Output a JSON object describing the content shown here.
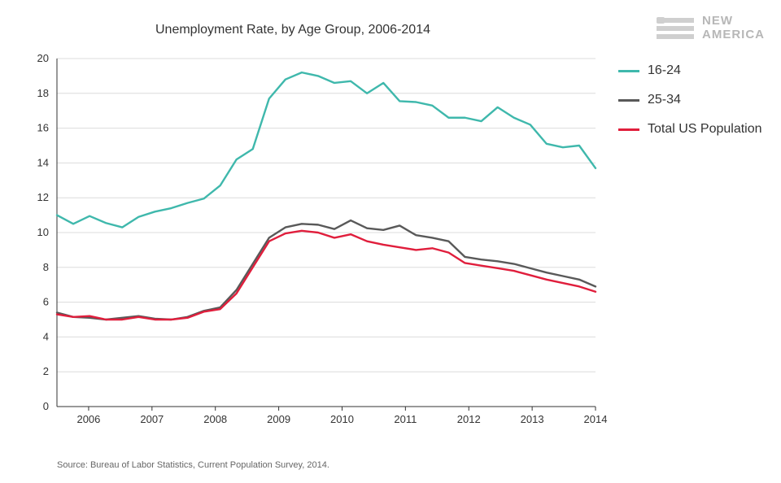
{
  "title": "Unemployment Rate, by Age Group, 2006-2014",
  "source": "Source: Bureau of Labor Statistics, Current Population Survey, 2014.",
  "logo": {
    "line1": "NEW",
    "line2": "AMERICA",
    "bar_color": "#cfcfcf",
    "text_color": "#b7b7b7"
  },
  "colors": {
    "background": "#ffffff",
    "axis": "#333333",
    "grid": "#dcdcdc",
    "tick_text": "#333333"
  },
  "chart": {
    "type": "line",
    "ylim": [
      0,
      20
    ],
    "ytick_step": 2,
    "y_tick_values": [
      0,
      2,
      4,
      6,
      8,
      10,
      12,
      14,
      16,
      18,
      20
    ],
    "x_years": [
      2006,
      2007,
      2008,
      2009,
      2010,
      2011,
      2012,
      2013,
      2014
    ],
    "x_data_start": 2005.5,
    "x_data_end": 2014.0,
    "x_points_per_year": 4,
    "axis_fontsize": 13,
    "line_width": 2.4,
    "series": [
      {
        "name": "16-24",
        "color": "#3fb8ac",
        "values": [
          11.0,
          10.5,
          10.95,
          10.55,
          10.3,
          10.9,
          11.2,
          11.4,
          11.7,
          11.95,
          12.7,
          14.2,
          14.8,
          17.7,
          18.8,
          19.2,
          19.0,
          18.6,
          18.7,
          18.0,
          18.6,
          17.55,
          17.5,
          17.3,
          16.6,
          16.6,
          16.4,
          17.2,
          16.6,
          16.2,
          15.1,
          14.9,
          15.0,
          13.7
        ]
      },
      {
        "name": "25-34",
        "color": "#595959",
        "values": [
          5.4,
          5.15,
          5.1,
          5.0,
          5.1,
          5.2,
          5.05,
          5.0,
          5.15,
          5.5,
          5.7,
          6.7,
          8.2,
          9.7,
          10.3,
          10.5,
          10.45,
          10.2,
          10.7,
          10.25,
          10.15,
          10.4,
          9.85,
          9.7,
          9.5,
          8.6,
          8.45,
          8.35,
          8.2,
          7.95,
          7.7,
          7.5,
          7.3,
          6.9
        ]
      },
      {
        "name": "Total US Population",
        "color": "#e01e3c",
        "values": [
          5.3,
          5.15,
          5.2,
          5.0,
          5.0,
          5.15,
          5.0,
          5.0,
          5.1,
          5.45,
          5.6,
          6.5,
          8.0,
          9.5,
          9.95,
          10.1,
          10.0,
          9.7,
          9.9,
          9.5,
          9.3,
          9.15,
          9.0,
          9.1,
          8.85,
          8.25,
          8.1,
          7.95,
          7.8,
          7.55,
          7.3,
          7.1,
          6.9,
          6.6
        ]
      }
    ]
  },
  "legend": {
    "items": [
      {
        "label": "16-24",
        "color": "#3fb8ac"
      },
      {
        "label": "25-34",
        "color": "#595959"
      },
      {
        "label": "Total US Population",
        "color": "#e01e3c"
      }
    ]
  }
}
